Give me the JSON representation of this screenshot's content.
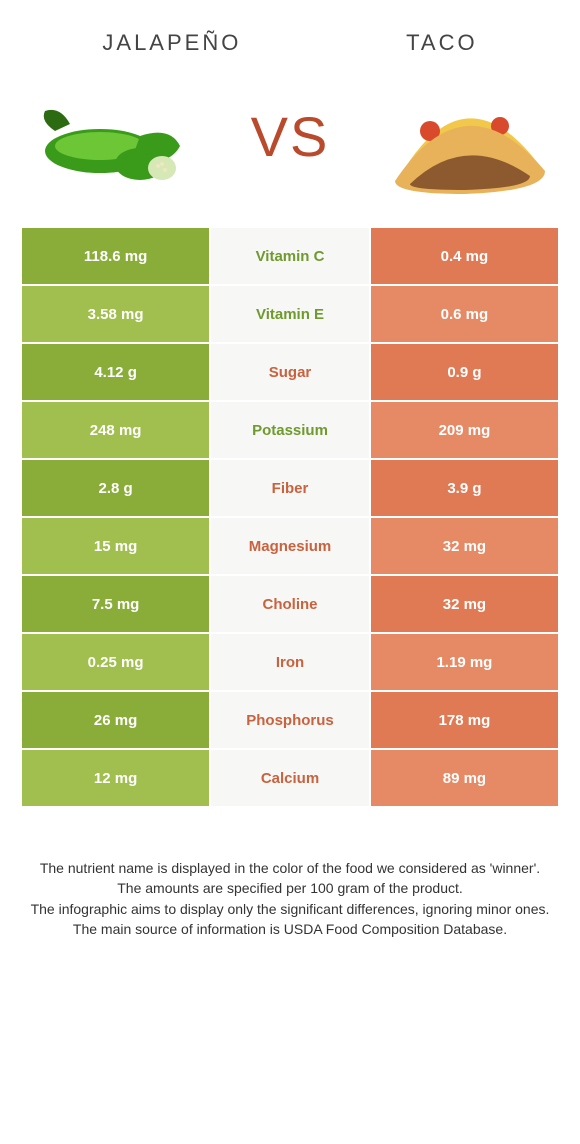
{
  "header": {
    "left": "JALAPEÑO",
    "right": "TACO",
    "vs": "VS"
  },
  "colors": {
    "jalapeno_primary": "#8aad3a",
    "jalapeno_alt": "#a1bf4e",
    "taco_primary": "#e07a54",
    "taco_alt": "#e68a66",
    "mid_bg": "#f7f7f5",
    "winner_green": "#6f9a2f",
    "winner_orange": "#c9623e",
    "text": "#333333"
  },
  "rows": [
    {
      "nutrient": "Vitamin C",
      "left": "118.6 mg",
      "right": "0.4 mg",
      "winner": "left"
    },
    {
      "nutrient": "Vitamin E",
      "left": "3.58 mg",
      "right": "0.6 mg",
      "winner": "left"
    },
    {
      "nutrient": "Sugar",
      "left": "4.12 g",
      "right": "0.9 g",
      "winner": "right"
    },
    {
      "nutrient": "Potassium",
      "left": "248 mg",
      "right": "209 mg",
      "winner": "left"
    },
    {
      "nutrient": "Fiber",
      "left": "2.8 g",
      "right": "3.9 g",
      "winner": "right"
    },
    {
      "nutrient": "Magnesium",
      "left": "15 mg",
      "right": "32 mg",
      "winner": "right"
    },
    {
      "nutrient": "Choline",
      "left": "7.5 mg",
      "right": "32 mg",
      "winner": "right"
    },
    {
      "nutrient": "Iron",
      "left": "0.25 mg",
      "right": "1.19 mg",
      "winner": "right"
    },
    {
      "nutrient": "Phosphorus",
      "left": "26 mg",
      "right": "178 mg",
      "winner": "right"
    },
    {
      "nutrient": "Calcium",
      "left": "12 mg",
      "right": "89 mg",
      "winner": "right"
    }
  ],
  "footer": [
    "The nutrient name is displayed in the color of the food we considered as 'winner'.",
    "The amounts are specified per 100 gram of the product.",
    "The infographic aims to display only the significant differences, ignoring minor ones.",
    "The main source of information is USDA Food Composition Database."
  ]
}
